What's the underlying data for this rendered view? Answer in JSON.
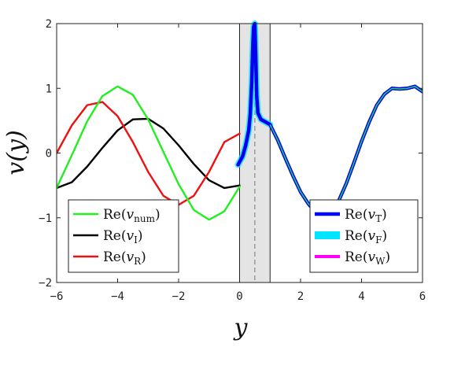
{
  "chart_data": {
    "type": "line",
    "xlabel": "y",
    "ylabel": "v(y)",
    "xlim": [
      -6,
      6
    ],
    "ylim": [
      -2,
      2
    ],
    "xticks": [
      -6,
      -4,
      -2,
      0,
      2,
      4,
      6
    ],
    "yticks": [
      -2,
      -1,
      0,
      1,
      2
    ],
    "xtick_labels": [
      "−6",
      "−4",
      "−2",
      "0",
      "2",
      "4",
      "6"
    ],
    "ytick_labels": [
      "−2",
      "−1",
      "0",
      "1",
      "2"
    ],
    "grid": false,
    "shaded_region": {
      "x": [
        0,
        1
      ],
      "color": "#e4e4e4"
    },
    "vertical_dashed_line": {
      "x": 0.5,
      "color": "#888888"
    },
    "legends": [
      {
        "placement": "bottom-left",
        "entries": [
          "Re(v_num)",
          "Re(v_I)",
          "Re(v_R)"
        ]
      },
      {
        "placement": "bottom-right",
        "entries": [
          "Re(v_T)",
          "Re(v_F)",
          "Re(v_W)"
        ]
      }
    ],
    "series": [
      {
        "name": "Re(v_num)",
        "color": "#22ee22",
        "x": [
          -6,
          -5.5,
          -5,
          -4.5,
          -4,
          -3.5,
          -3,
          -2.5,
          -2,
          -1.5,
          -1,
          -0.5,
          0
        ],
        "y": [
          -0.54,
          -0.03,
          0.49,
          0.88,
          1.03,
          0.9,
          0.52,
          0.02,
          -0.48,
          -0.88,
          -1.03,
          -0.9,
          -0.52
        ]
      },
      {
        "name": "Re(v_I)",
        "color": "#000000",
        "x": [
          -6,
          -5.5,
          -5,
          -4.5,
          -4,
          -3.5,
          -3,
          -2.5,
          -2,
          -1.5,
          -1,
          -0.5,
          0
        ],
        "y": [
          -0.54,
          -0.45,
          -0.21,
          0.08,
          0.35,
          0.52,
          0.53,
          0.38,
          0.12,
          -0.17,
          -0.42,
          -0.54,
          -0.5
        ]
      },
      {
        "name": "Re(v_R)",
        "color": "#ee1111",
        "x": [
          -6,
          -5.5,
          -5,
          -4.5,
          -4,
          -3.5,
          -3,
          -2.5,
          -2,
          -1.5,
          -1,
          -0.5,
          0
        ],
        "y": [
          0.0,
          0.43,
          0.74,
          0.79,
          0.57,
          0.17,
          -0.29,
          -0.66,
          -0.8,
          -0.66,
          -0.29,
          0.17,
          0.3
        ]
      },
      {
        "name": "Re(v_F)",
        "color": "#00e5ff",
        "x": [
          -0.05,
          0.1,
          0.2,
          0.3,
          0.35,
          0.4,
          0.43,
          0.46,
          0.5,
          0.53,
          0.56,
          0.6,
          0.7,
          0.85,
          1.0
        ],
        "y": [
          -0.18,
          -0.05,
          0.12,
          0.35,
          0.6,
          1.1,
          1.6,
          1.95,
          2.0,
          1.5,
          0.9,
          0.62,
          0.52,
          0.48,
          0.44
        ]
      },
      {
        "name": "Re(v_W)",
        "color": "#ff00ff",
        "x": [
          -0.05,
          0.1,
          0.2,
          0.3,
          0.35,
          0.4,
          0.43,
          0.46,
          0.5,
          0.53,
          0.56,
          0.6,
          0.7,
          0.85,
          1.0
        ],
        "y": [
          -0.18,
          -0.05,
          0.12,
          0.35,
          0.6,
          1.1,
          1.6,
          1.95,
          2.0,
          1.5,
          0.9,
          0.62,
          0.52,
          0.48,
          0.44
        ]
      },
      {
        "name": "Re(v_T)",
        "color": "#0000ee",
        "x": [
          -0.05,
          0.1,
          0.2,
          0.3,
          0.35,
          0.4,
          0.43,
          0.46,
          0.5,
          0.53,
          0.56,
          0.6,
          0.7,
          0.85,
          1.0,
          1.25,
          1.5,
          1.75,
          2.0,
          2.25,
          2.5,
          2.75,
          3.0,
          3.25,
          3.5,
          3.75,
          4.0,
          4.25,
          4.5,
          4.75,
          5.0,
          5.25,
          5.5,
          5.75,
          6.0
        ],
        "y": [
          -0.18,
          -0.05,
          0.12,
          0.35,
          0.6,
          1.1,
          1.6,
          1.95,
          2.0,
          1.5,
          0.9,
          0.62,
          0.52,
          0.48,
          0.44,
          0.2,
          -0.08,
          -0.35,
          -0.6,
          -0.78,
          -0.92,
          -0.97,
          -0.92,
          -0.74,
          -0.47,
          -0.15,
          0.18,
          0.48,
          0.74,
          0.91,
          1.0,
          0.99,
          1.0,
          1.03,
          0.95
        ]
      }
    ]
  }
}
